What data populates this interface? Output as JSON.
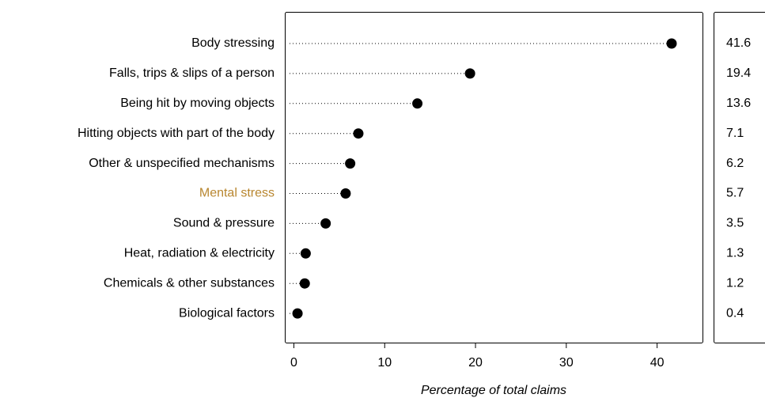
{
  "chart_data": {
    "type": "dot",
    "x_label": "Percentage of total claims",
    "categories": [
      "Body stressing",
      "Falls, trips & slips of a person",
      "Being hit by moving objects",
      "Hitting objects with part of the body",
      "Other & unspecified mechanisms",
      "Mental stress",
      "Sound & pressure",
      "Heat, radiation & electricity",
      "Chemicals & other substances",
      "Biological factors"
    ],
    "values": [
      41.6,
      19.4,
      13.6,
      7.1,
      6.2,
      5.7,
      3.5,
      1.3,
      1.2,
      0.4
    ],
    "label_colors": [
      "#000000",
      "#000000",
      "#000000",
      "#000000",
      "#000000",
      "#b8862f",
      "#000000",
      "#000000",
      "#000000",
      "#000000"
    ],
    "color": "#000000",
    "xlim": [
      -1,
      45
    ],
    "xticks": [
      0,
      10,
      20,
      30,
      40
    ]
  }
}
